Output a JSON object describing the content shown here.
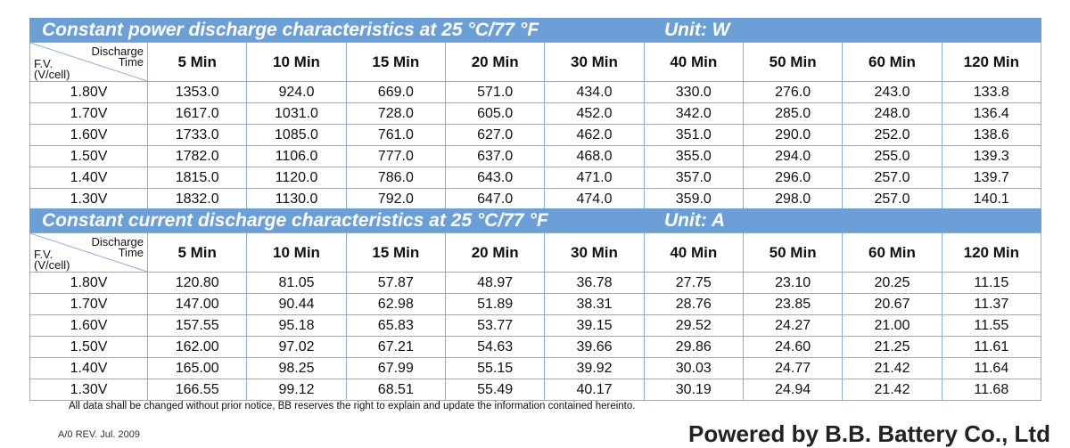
{
  "tables": [
    {
      "title": "Constant power discharge characteristics at 25 °C/77 °F",
      "unit": "Unit: W",
      "corner": {
        "discharge": "Discharge",
        "time": "Time",
        "fv": "F.V.",
        "vcell": "(V/cell)"
      },
      "columns": [
        "5 Min",
        "10 Min",
        "15 Min",
        "20 Min",
        "30 Min",
        "40 Min",
        "50 Min",
        "60 Min",
        "120 Min"
      ],
      "rows": [
        {
          "label": "1.80V",
          "values": [
            "1353.0",
            "924.0",
            "669.0",
            "571.0",
            "434.0",
            "330.0",
            "276.0",
            "243.0",
            "133.8"
          ]
        },
        {
          "label": "1.70V",
          "values": [
            "1617.0",
            "1031.0",
            "728.0",
            "605.0",
            "452.0",
            "342.0",
            "285.0",
            "248.0",
            "136.4"
          ]
        },
        {
          "label": "1.60V",
          "values": [
            "1733.0",
            "1085.0",
            "761.0",
            "627.0",
            "462.0",
            "351.0",
            "290.0",
            "252.0",
            "138.6"
          ]
        },
        {
          "label": "1.50V",
          "values": [
            "1782.0",
            "1106.0",
            "777.0",
            "637.0",
            "468.0",
            "355.0",
            "294.0",
            "255.0",
            "139.3"
          ]
        },
        {
          "label": "1.40V",
          "values": [
            "1815.0",
            "1120.0",
            "786.0",
            "643.0",
            "471.0",
            "357.0",
            "296.0",
            "257.0",
            "139.7"
          ]
        },
        {
          "label": "1.30V",
          "values": [
            "1832.0",
            "1130.0",
            "792.0",
            "647.0",
            "474.0",
            "359.0",
            "298.0",
            "257.0",
            "140.1"
          ]
        }
      ]
    },
    {
      "title": "Constant current discharge characteristics at 25 °C/77 °F",
      "unit": "Unit: A",
      "corner": {
        "discharge": "Discharge",
        "time": "Time",
        "fv": "F.V.",
        "vcell": "(V/cell)"
      },
      "columns": [
        "5 Min",
        "10 Min",
        "15 Min",
        "20 Min",
        "30 Min",
        "40 Min",
        "50 Min",
        "60 Min",
        "120 Min"
      ],
      "rows": [
        {
          "label": "1.80V",
          "values": [
            "120.80",
            "81.05",
            "57.87",
            "48.97",
            "36.78",
            "27.75",
            "23.10",
            "20.25",
            "11.15"
          ]
        },
        {
          "label": "1.70V",
          "values": [
            "147.00",
            "90.44",
            "62.98",
            "51.89",
            "38.31",
            "28.76",
            "23.85",
            "20.67",
            "11.37"
          ]
        },
        {
          "label": "1.60V",
          "values": [
            "157.55",
            "95.18",
            "65.83",
            "53.77",
            "39.15",
            "29.52",
            "24.27",
            "21.00",
            "11.55"
          ]
        },
        {
          "label": "1.50V",
          "values": [
            "162.00",
            "97.02",
            "67.21",
            "54.63",
            "39.66",
            "29.86",
            "24.60",
            "21.25",
            "11.61"
          ]
        },
        {
          "label": "1.40V",
          "values": [
            "165.00",
            "98.25",
            "67.99",
            "55.15",
            "39.92",
            "30.03",
            "24.77",
            "21.42",
            "11.64"
          ]
        },
        {
          "label": "1.30V",
          "values": [
            "166.55",
            "99.12",
            "68.51",
            "55.49",
            "40.17",
            "30.19",
            "24.94",
            "21.42",
            "11.68"
          ]
        }
      ]
    }
  ],
  "notice": "All data shall be changed without prior notice, BB reserves the right to explain and update the information contained hereinto.",
  "footer": {
    "revision": "A/0 REV. Jul. 2009",
    "company": "Powered by B.B. Battery Co., Ltd"
  }
}
